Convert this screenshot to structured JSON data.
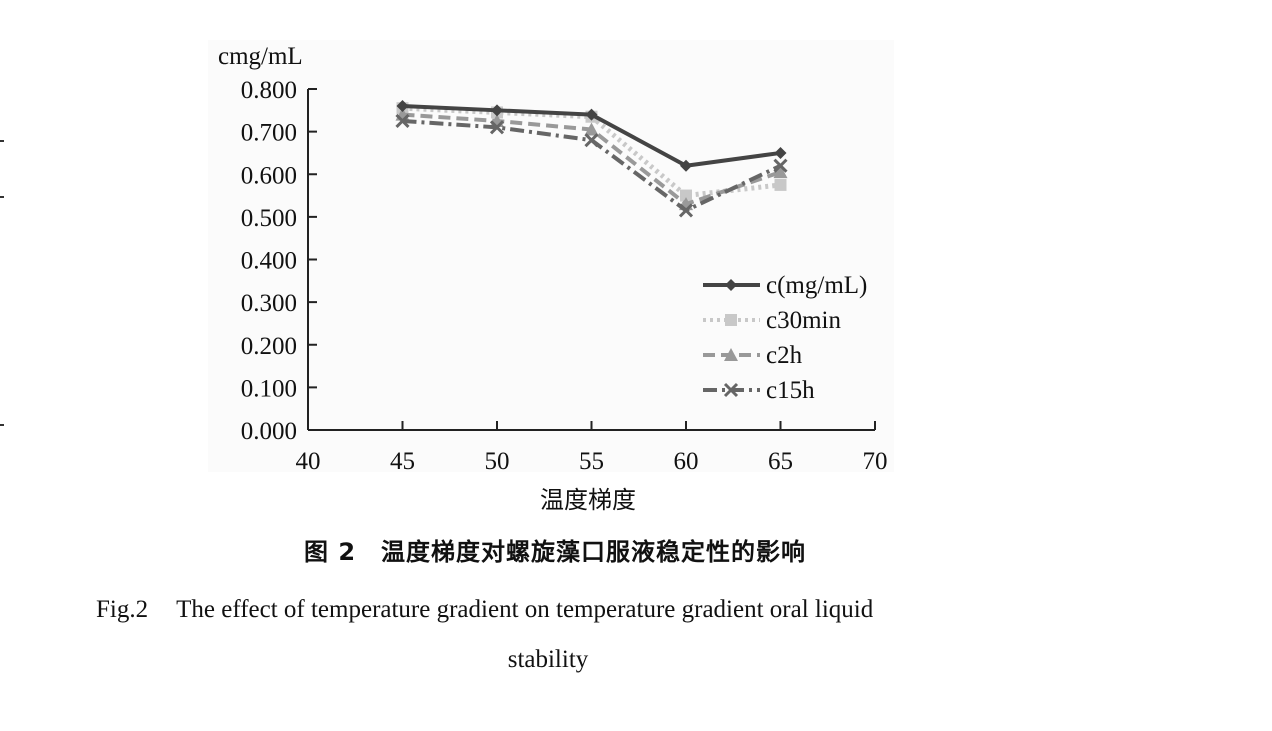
{
  "chart_data": {
    "type": "line",
    "ylabel": "cmg/mL",
    "xlabel": "温度梯度",
    "xlim": [
      40,
      70
    ],
    "ylim": [
      0.0,
      0.8
    ],
    "xticks": [
      "40",
      "45",
      "50",
      "55",
      "60",
      "65",
      "70"
    ],
    "yticks": [
      "0.000",
      "0.100",
      "0.200",
      "0.300",
      "0.400",
      "0.500",
      "0.600",
      "0.700",
      "0.800"
    ],
    "legend_position": "right-middle",
    "grid": false,
    "x": [
      45,
      50,
      55,
      60,
      65
    ],
    "series": [
      {
        "name": "c(mg/mL)",
        "values": [
          0.76,
          0.75,
          0.74,
          0.62,
          0.65
        ],
        "color": "#444444",
        "style": "solid",
        "marker": "diamond"
      },
      {
        "name": "c30min",
        "values": [
          0.755,
          0.745,
          0.735,
          0.55,
          0.575
        ],
        "color": "#c8c8c8",
        "style": "dotted",
        "marker": "square"
      },
      {
        "name": "c2h",
        "values": [
          0.74,
          0.725,
          0.705,
          0.53,
          0.605
        ],
        "color": "#999999",
        "style": "dashed",
        "marker": "triangle"
      },
      {
        "name": "c15h",
        "values": [
          0.725,
          0.71,
          0.68,
          0.515,
          0.62
        ],
        "color": "#666666",
        "style": "dashdot",
        "marker": "cross"
      }
    ]
  },
  "caption": {
    "cn": "图 2　温度梯度对螺旋藻口服液稳定性的影响",
    "en_label": "Fig.2",
    "en_text_line1": "The effect of temperature gradient on temperature gradient oral liquid",
    "en_text_line2": "stability"
  }
}
